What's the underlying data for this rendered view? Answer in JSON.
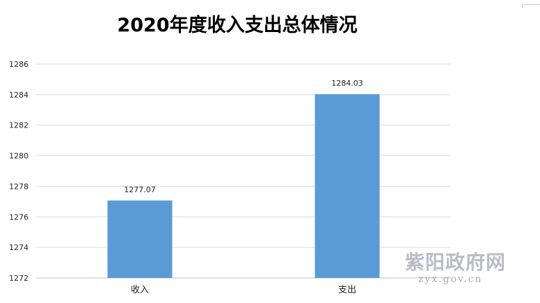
{
  "chart_data": {
    "type": "bar",
    "title": "2020年度收入支出总体情况",
    "categories": [
      "收入",
      "支出"
    ],
    "values": [
      1277.07,
      1284.03
    ],
    "value_labels": [
      "1277.07",
      "1284.03"
    ],
    "ylim": [
      1272,
      1286
    ],
    "yticks": [
      1272,
      1274,
      1276,
      1278,
      1280,
      1282,
      1284,
      1286
    ],
    "grid": true,
    "legend": "none",
    "bar_color": "#5b9bd5"
  },
  "watermark": {
    "name": "紫阳政府网",
    "url": "zyx.gov.cn"
  }
}
